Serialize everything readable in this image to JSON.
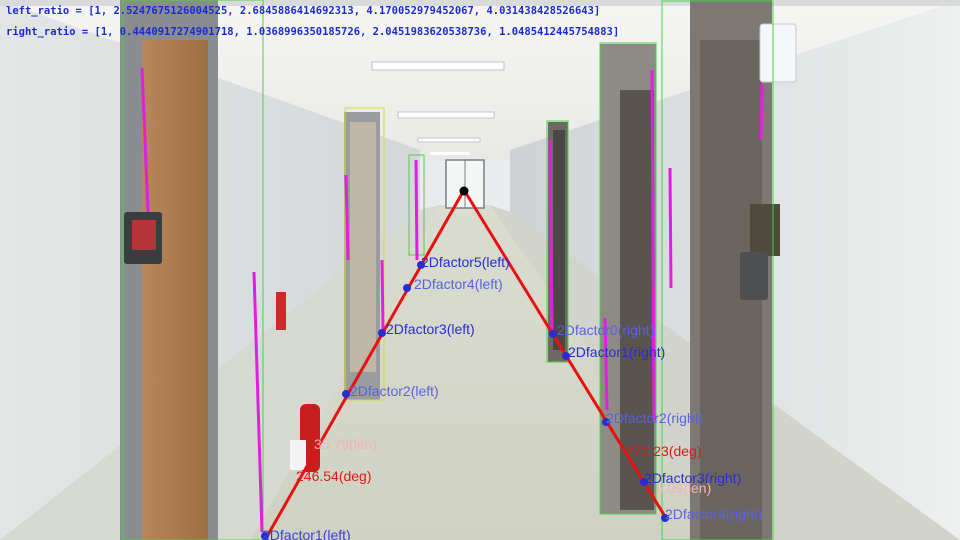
{
  "ratios": {
    "left_label": "left_ratio",
    "left_values": [
      1,
      2.5247675126004525,
      2.6845886414692313,
      4.170052979452067,
      4.031438428526643
    ],
    "right_label": "right_ratio",
    "right_values": [
      1,
      0.4440917274901718,
      1.0368996350185726,
      2.0451983620538736,
      1.0485412445754883
    ],
    "color": "#1a2bd6"
  },
  "vanishing_point": {
    "color": "#000000"
  },
  "factors": [
    {
      "label": "2Dfactor1(left)",
      "color": "#3b3fd9"
    },
    {
      "label": "2Dfactor2(left)",
      "color": "#5a62e0"
    },
    {
      "label": "2Dfactor3(left)",
      "color": "#2a2ccf"
    },
    {
      "label": "2Dfactor4(left)",
      "color": "#5a62e0"
    },
    {
      "label": "2Dfactor5(left)",
      "color": "#2a2ccf"
    },
    {
      "label": "2Dfactor0(right)",
      "color": "#5a62e0"
    },
    {
      "label": "2Dfactor1(right)",
      "color": "#2a2ccf"
    },
    {
      "label": "2Dfactor2(right)",
      "color": "#5a62e0"
    },
    {
      "label": "2Dfactor3(right)",
      "color": "#2a2ccf"
    },
    {
      "label": "2Dfactor4(right)",
      "color": "#5a62e0"
    }
  ],
  "measurements": {
    "left_len": "35.79(len)",
    "left_deg": "246.54(deg)",
    "right_deg": "272.23(deg)",
    "right_len": "6.09(len)",
    "len_color": "#f2b3b3",
    "deg_color": "#e01919"
  },
  "colors": {
    "guide_line": "#e81010",
    "door_box": "#4ad14a",
    "door_box_small": "#d8d83a",
    "edge_segment": "#e020e0",
    "point": "#2a2ccf"
  }
}
